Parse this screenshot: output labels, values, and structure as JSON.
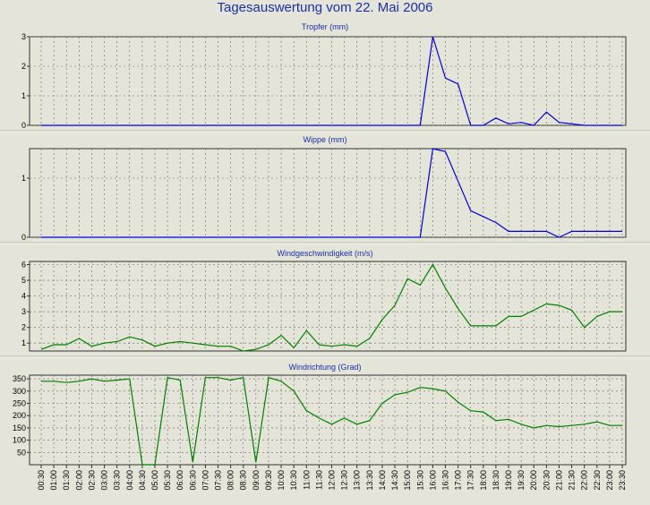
{
  "page_title": "Tagesauswertung vom 22. Mai 2006",
  "colors": {
    "rain": "#0000dd",
    "wind": "#008000",
    "title": "#1a2fa8",
    "panel_bg": "#e4e4d8",
    "grid": "#666666"
  },
  "x_labels": [
    "00:30",
    "01:00",
    "01:30",
    "02:00",
    "02:30",
    "03:00",
    "03:30",
    "04:00",
    "04:30",
    "05:00",
    "05:30",
    "06:00",
    "06:30",
    "07:00",
    "07:30",
    "08:00",
    "08:30",
    "09:00",
    "09:30",
    "10:00",
    "10:30",
    "11:00",
    "11:30",
    "12:00",
    "12:30",
    "13:00",
    "13:30",
    "14:00",
    "14:30",
    "15:00",
    "15:30",
    "16:00",
    "16:30",
    "17:00",
    "17:30",
    "18:00",
    "18:30",
    "19:00",
    "19:30",
    "20:00",
    "20:30",
    "21:00",
    "21:30",
    "22:00",
    "22:30",
    "23:00",
    "23:30"
  ],
  "chart_data": [
    {
      "type": "line",
      "title": "Tropfer (mm)",
      "yticks": [
        0,
        1,
        2,
        3
      ],
      "ylim": [
        0,
        3
      ],
      "grid": true,
      "series": [
        {
          "values": [
            0,
            0,
            0,
            0,
            0,
            0,
            0,
            0,
            0,
            0,
            0,
            0,
            0,
            0,
            0,
            0,
            0,
            0,
            0,
            0,
            0,
            0,
            0,
            0,
            0,
            0,
            0,
            0,
            0,
            0,
            0,
            3.0,
            1.6,
            1.4,
            0,
            0,
            0.25,
            0.05,
            0.1,
            0,
            0.45,
            0.1,
            0.05,
            0,
            0,
            0,
            0
          ]
        }
      ]
    },
    {
      "type": "line",
      "title": "Wippe (mm)",
      "yticks": [
        0,
        1
      ],
      "ylim": [
        0,
        1.5
      ],
      "grid": true,
      "series": [
        {
          "values": [
            0,
            0,
            0,
            0,
            0,
            0,
            0,
            0,
            0,
            0,
            0,
            0,
            0,
            0,
            0,
            0,
            0,
            0,
            0,
            0,
            0,
            0,
            0,
            0,
            0,
            0,
            0,
            0,
            0,
            0,
            0,
            1.5,
            1.45,
            0.95,
            0.45,
            0.35,
            0.25,
            0.1,
            0.1,
            0.1,
            0.1,
            0,
            0.1,
            0.1,
            0.1,
            0.1,
            0.1
          ]
        }
      ]
    },
    {
      "type": "line",
      "title": "Windgeschwindigkeit (m/s)",
      "yticks": [
        1,
        2,
        3,
        4,
        5,
        6
      ],
      "ylim": [
        0.5,
        6.2
      ],
      "grid": true,
      "series": [
        {
          "values": [
            0.6,
            0.9,
            0.9,
            1.3,
            0.8,
            1.0,
            1.1,
            1.4,
            1.2,
            0.8,
            1.0,
            1.1,
            1.0,
            0.9,
            0.8,
            0.8,
            0.5,
            0.6,
            0.9,
            1.5,
            0.7,
            1.8,
            0.9,
            0.8,
            0.9,
            0.8,
            1.3,
            2.5,
            3.4,
            5.1,
            4.7,
            6.0,
            4.5,
            3.2,
            2.1,
            2.1,
            2.1,
            2.7,
            2.7,
            3.1,
            3.5,
            3.4,
            3.1,
            2.0,
            2.7,
            3.0,
            3.0
          ]
        }
      ]
    },
    {
      "type": "line",
      "title": "Windrichtung (Grad)",
      "yticks": [
        50,
        100,
        150,
        200,
        250,
        300,
        350
      ],
      "ylim": [
        0,
        365
      ],
      "grid": true,
      "series": [
        {
          "values": [
            340,
            340,
            335,
            340,
            350,
            340,
            345,
            350,
            0,
            0,
            355,
            345,
            10,
            355,
            355,
            345,
            355,
            10,
            355,
            340,
            300,
            220,
            190,
            165,
            190,
            165,
            180,
            250,
            285,
            295,
            315,
            310,
            300,
            255,
            220,
            215,
            180,
            185,
            165,
            150,
            160,
            155,
            160,
            165,
            175,
            160,
            160
          ]
        }
      ]
    }
  ]
}
